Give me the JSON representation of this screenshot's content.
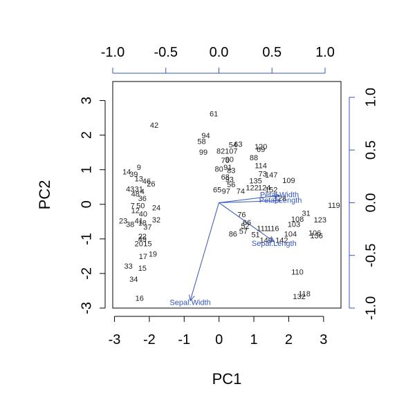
{
  "chart_data": {
    "type": "biplot",
    "xlabel": "PC1",
    "ylabel": "PC2",
    "scores_axes": {
      "x_ticks": [
        -3,
        -2,
        -1,
        0,
        1,
        2,
        3
      ],
      "y_ticks": [
        -3,
        -2,
        -1,
        0,
        1,
        2,
        3
      ],
      "xlim": [
        -3.05,
        3.5
      ],
      "ylim": [
        -3.0,
        3.55
      ]
    },
    "loadings_axes": {
      "top_ticks": [
        "-1.0",
        "-0.5",
        "0.0",
        "0.5",
        "1.0"
      ],
      "top_values": [
        -1.0,
        -0.5,
        0.0,
        0.5,
        1.0
      ],
      "right_ticks": [
        "-1.0",
        "-0.5",
        "0.0",
        "0.5",
        "1.0"
      ],
      "right_values": [
        -1.0,
        -0.5,
        0.0,
        0.5,
        1.0
      ],
      "xlim": [
        -1.0,
        1.15
      ],
      "ylim": [
        -1.0,
        1.15
      ]
    },
    "arrow_color": "#3355bb",
    "text_color": "#222222",
    "loadings": [
      {
        "name": "Sepal.Length",
        "x": 0.52,
        "y": -0.37,
        "lx": 0.52,
        "ly": -0.39
      },
      {
        "name": "Sepal.Width",
        "x": -0.27,
        "y": -0.93,
        "lx": -0.27,
        "ly": -0.95
      },
      {
        "name": "Petal.Length",
        "x": 0.58,
        "y": 0.02,
        "lx": 0.58,
        "ly": 0.02
      },
      {
        "name": "Petal.Width",
        "x": 0.57,
        "y": 0.07,
        "lx": 0.57,
        "ly": 0.07
      }
    ],
    "points": [
      {
        "label": "42",
        "x": -1.86,
        "y": 2.27
      },
      {
        "label": "61",
        "x": -0.15,
        "y": 2.6
      },
      {
        "label": "94",
        "x": -0.38,
        "y": 1.97
      },
      {
        "label": "58",
        "x": -0.5,
        "y": 1.8
      },
      {
        "label": "99",
        "x": -0.45,
        "y": 1.49
      },
      {
        "label": "54",
        "x": 0.4,
        "y": 1.7
      },
      {
        "label": "63",
        "x": 0.55,
        "y": 1.72
      },
      {
        "label": "82",
        "x": 0.05,
        "y": 1.52
      },
      {
        "label": "107",
        "x": 0.35,
        "y": 1.52
      },
      {
        "label": "70",
        "x": 0.18,
        "y": 1.25
      },
      {
        "label": "120",
        "x": 1.2,
        "y": 1.65
      },
      {
        "label": "69",
        "x": 1.2,
        "y": 1.57
      },
      {
        "label": "88",
        "x": 1.0,
        "y": 1.33
      },
      {
        "label": "90",
        "x": 0.3,
        "y": 1.28
      },
      {
        "label": "80",
        "x": 0.0,
        "y": 1.0
      },
      {
        "label": "91",
        "x": 0.25,
        "y": 1.05
      },
      {
        "label": "83",
        "x": 0.35,
        "y": 0.96
      },
      {
        "label": "114",
        "x": 1.2,
        "y": 1.1
      },
      {
        "label": "73",
        "x": 1.25,
        "y": 0.86
      },
      {
        "label": "147",
        "x": 1.5,
        "y": 0.83
      },
      {
        "label": "109",
        "x": 2.0,
        "y": 0.67
      },
      {
        "label": "68",
        "x": 0.18,
        "y": 0.77
      },
      {
        "label": "93",
        "x": 0.3,
        "y": 0.7
      },
      {
        "label": "56",
        "x": 0.35,
        "y": 0.55
      },
      {
        "label": "65",
        "x": -0.05,
        "y": 0.4
      },
      {
        "label": "97",
        "x": 0.2,
        "y": 0.36
      },
      {
        "label": "74",
        "x": 0.62,
        "y": 0.36
      },
      {
        "label": "135",
        "x": 1.05,
        "y": 0.66
      },
      {
        "label": "122",
        "x": 0.95,
        "y": 0.46
      },
      {
        "label": "124",
        "x": 1.3,
        "y": 0.46
      },
      {
        "label": "152",
        "x": 1.5,
        "y": 0.4
      },
      {
        "label": "128",
        "x": 1.75,
        "y": 0.15
      },
      {
        "label": "119",
        "x": 3.3,
        "y": -0.05
      },
      {
        "label": "31",
        "x": 2.5,
        "y": -0.28
      },
      {
        "label": "123",
        "x": 2.9,
        "y": -0.47
      },
      {
        "label": "106",
        "x": 2.75,
        "y": -0.85
      },
      {
        "label": "136",
        "x": 2.8,
        "y": -0.93
      },
      {
        "label": "108",
        "x": 2.25,
        "y": -0.45
      },
      {
        "label": "103",
        "x": 2.15,
        "y": -0.6
      },
      {
        "label": "110",
        "x": 2.25,
        "y": -1.97
      },
      {
        "label": "118",
        "x": 2.45,
        "y": -2.6
      },
      {
        "label": "132",
        "x": 2.3,
        "y": -2.68
      },
      {
        "label": "76",
        "x": 0.65,
        "y": -0.32
      },
      {
        "label": "66",
        "x": 0.8,
        "y": -0.55
      },
      {
        "label": "52",
        "x": 0.75,
        "y": -0.65
      },
      {
        "label": "86",
        "x": 0.4,
        "y": -0.88
      },
      {
        "label": "57",
        "x": 0.7,
        "y": -0.8
      },
      {
        "label": "51",
        "x": 1.05,
        "y": -0.9
      },
      {
        "label": "111",
        "x": 1.25,
        "y": -0.72
      },
      {
        "label": "116",
        "x": 1.55,
        "y": -0.72
      },
      {
        "label": "104",
        "x": 2.05,
        "y": -0.88
      },
      {
        "label": "149",
        "x": 1.35,
        "y": -1.05
      },
      {
        "label": "142",
        "x": 1.8,
        "y": -1.05
      },
      {
        "label": "9",
        "x": -2.3,
        "y": 1.05
      },
      {
        "label": "14",
        "x": -2.65,
        "y": 0.92
      },
      {
        "label": "39",
        "x": -2.45,
        "y": 0.85
      },
      {
        "label": "13",
        "x": -2.3,
        "y": 0.72
      },
      {
        "label": "46",
        "x": -2.08,
        "y": 0.65
      },
      {
        "label": "26",
        "x": -1.95,
        "y": 0.57
      },
      {
        "label": "43",
        "x": -2.55,
        "y": 0.42
      },
      {
        "label": "31",
        "x": -2.3,
        "y": 0.42
      },
      {
        "label": "48",
        "x": -2.4,
        "y": 0.28
      },
      {
        "label": "4",
        "x": -2.2,
        "y": 0.35
      },
      {
        "label": "36",
        "x": -2.2,
        "y": 0.15
      },
      {
        "label": "7",
        "x": -2.48,
        "y": -0.06
      },
      {
        "label": "50",
        "x": -2.25,
        "y": -0.06
      },
      {
        "label": "24",
        "x": -1.8,
        "y": -0.12
      },
      {
        "label": "12",
        "x": -2.4,
        "y": -0.2
      },
      {
        "label": "40",
        "x": -2.18,
        "y": -0.3
      },
      {
        "label": "23",
        "x": -2.75,
        "y": -0.5
      },
      {
        "label": "38",
        "x": -2.55,
        "y": -0.6
      },
      {
        "label": "41",
        "x": -2.3,
        "y": -0.5
      },
      {
        "label": "18",
        "x": -2.2,
        "y": -0.56
      },
      {
        "label": "32",
        "x": -1.8,
        "y": -0.47
      },
      {
        "label": "37",
        "x": -2.05,
        "y": -0.68
      },
      {
        "label": "22",
        "x": -2.2,
        "y": -0.95
      },
      {
        "label": "49",
        "x": -2.2,
        "y": -1.02
      },
      {
        "label": "20",
        "x": -2.3,
        "y": -1.15
      },
      {
        "label": "15",
        "x": -2.05,
        "y": -1.15
      },
      {
        "label": "19",
        "x": -1.9,
        "y": -1.45
      },
      {
        "label": "17",
        "x": -2.18,
        "y": -1.52
      },
      {
        "label": "33",
        "x": -2.6,
        "y": -1.8
      },
      {
        "label": "15",
        "x": -2.2,
        "y": -1.86
      },
      {
        "label": "34",
        "x": -2.45,
        "y": -2.18
      },
      {
        "label": "16",
        "x": -2.28,
        "y": -2.73
      }
    ]
  }
}
